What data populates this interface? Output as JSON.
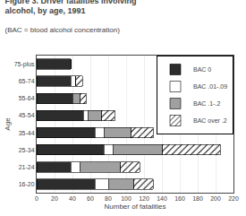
{
  "chart_data": {
    "type": "bar",
    "orientation": "horizontal",
    "stacked": true,
    "title": "Figure 3. Driver fatalities involving alcohol, by age, 1991",
    "subtitle": "(BAC = blood alcohol concentration)",
    "xlabel": "Number of fatalities",
    "ylabel": "Age",
    "categories": [
      "16-20",
      "21-24",
      "25-34",
      "35-44",
      "45-54",
      "55-64",
      "65-74",
      "75-plus"
    ],
    "series": [
      {
        "name": "BAC 0",
        "color": "#2d2d2d",
        "values": [
          65,
          38,
          75,
          65,
          52,
          40,
          38,
          38
        ]
      },
      {
        "name": "BAC .01-.09",
        "color": "#ffffff",
        "values": [
          15,
          10,
          10,
          10,
          5,
          0,
          5,
          0
        ]
      },
      {
        "name": "BAC .1-.2",
        "color": "#a0a0a0",
        "values": [
          28,
          45,
          55,
          30,
          15,
          8,
          0,
          0
        ]
      },
      {
        "name": "BAC over .2",
        "color": "#c8c8c8",
        "values": [
          22,
          22,
          65,
          25,
          15,
          7,
          8,
          0
        ]
      }
    ],
    "xlim": [
      0,
      220
    ],
    "xticks": [
      0,
      20,
      40,
      60,
      80,
      100,
      120,
      140,
      160,
      180,
      200,
      220
    ],
    "grid": true,
    "legend": "upper right"
  }
}
